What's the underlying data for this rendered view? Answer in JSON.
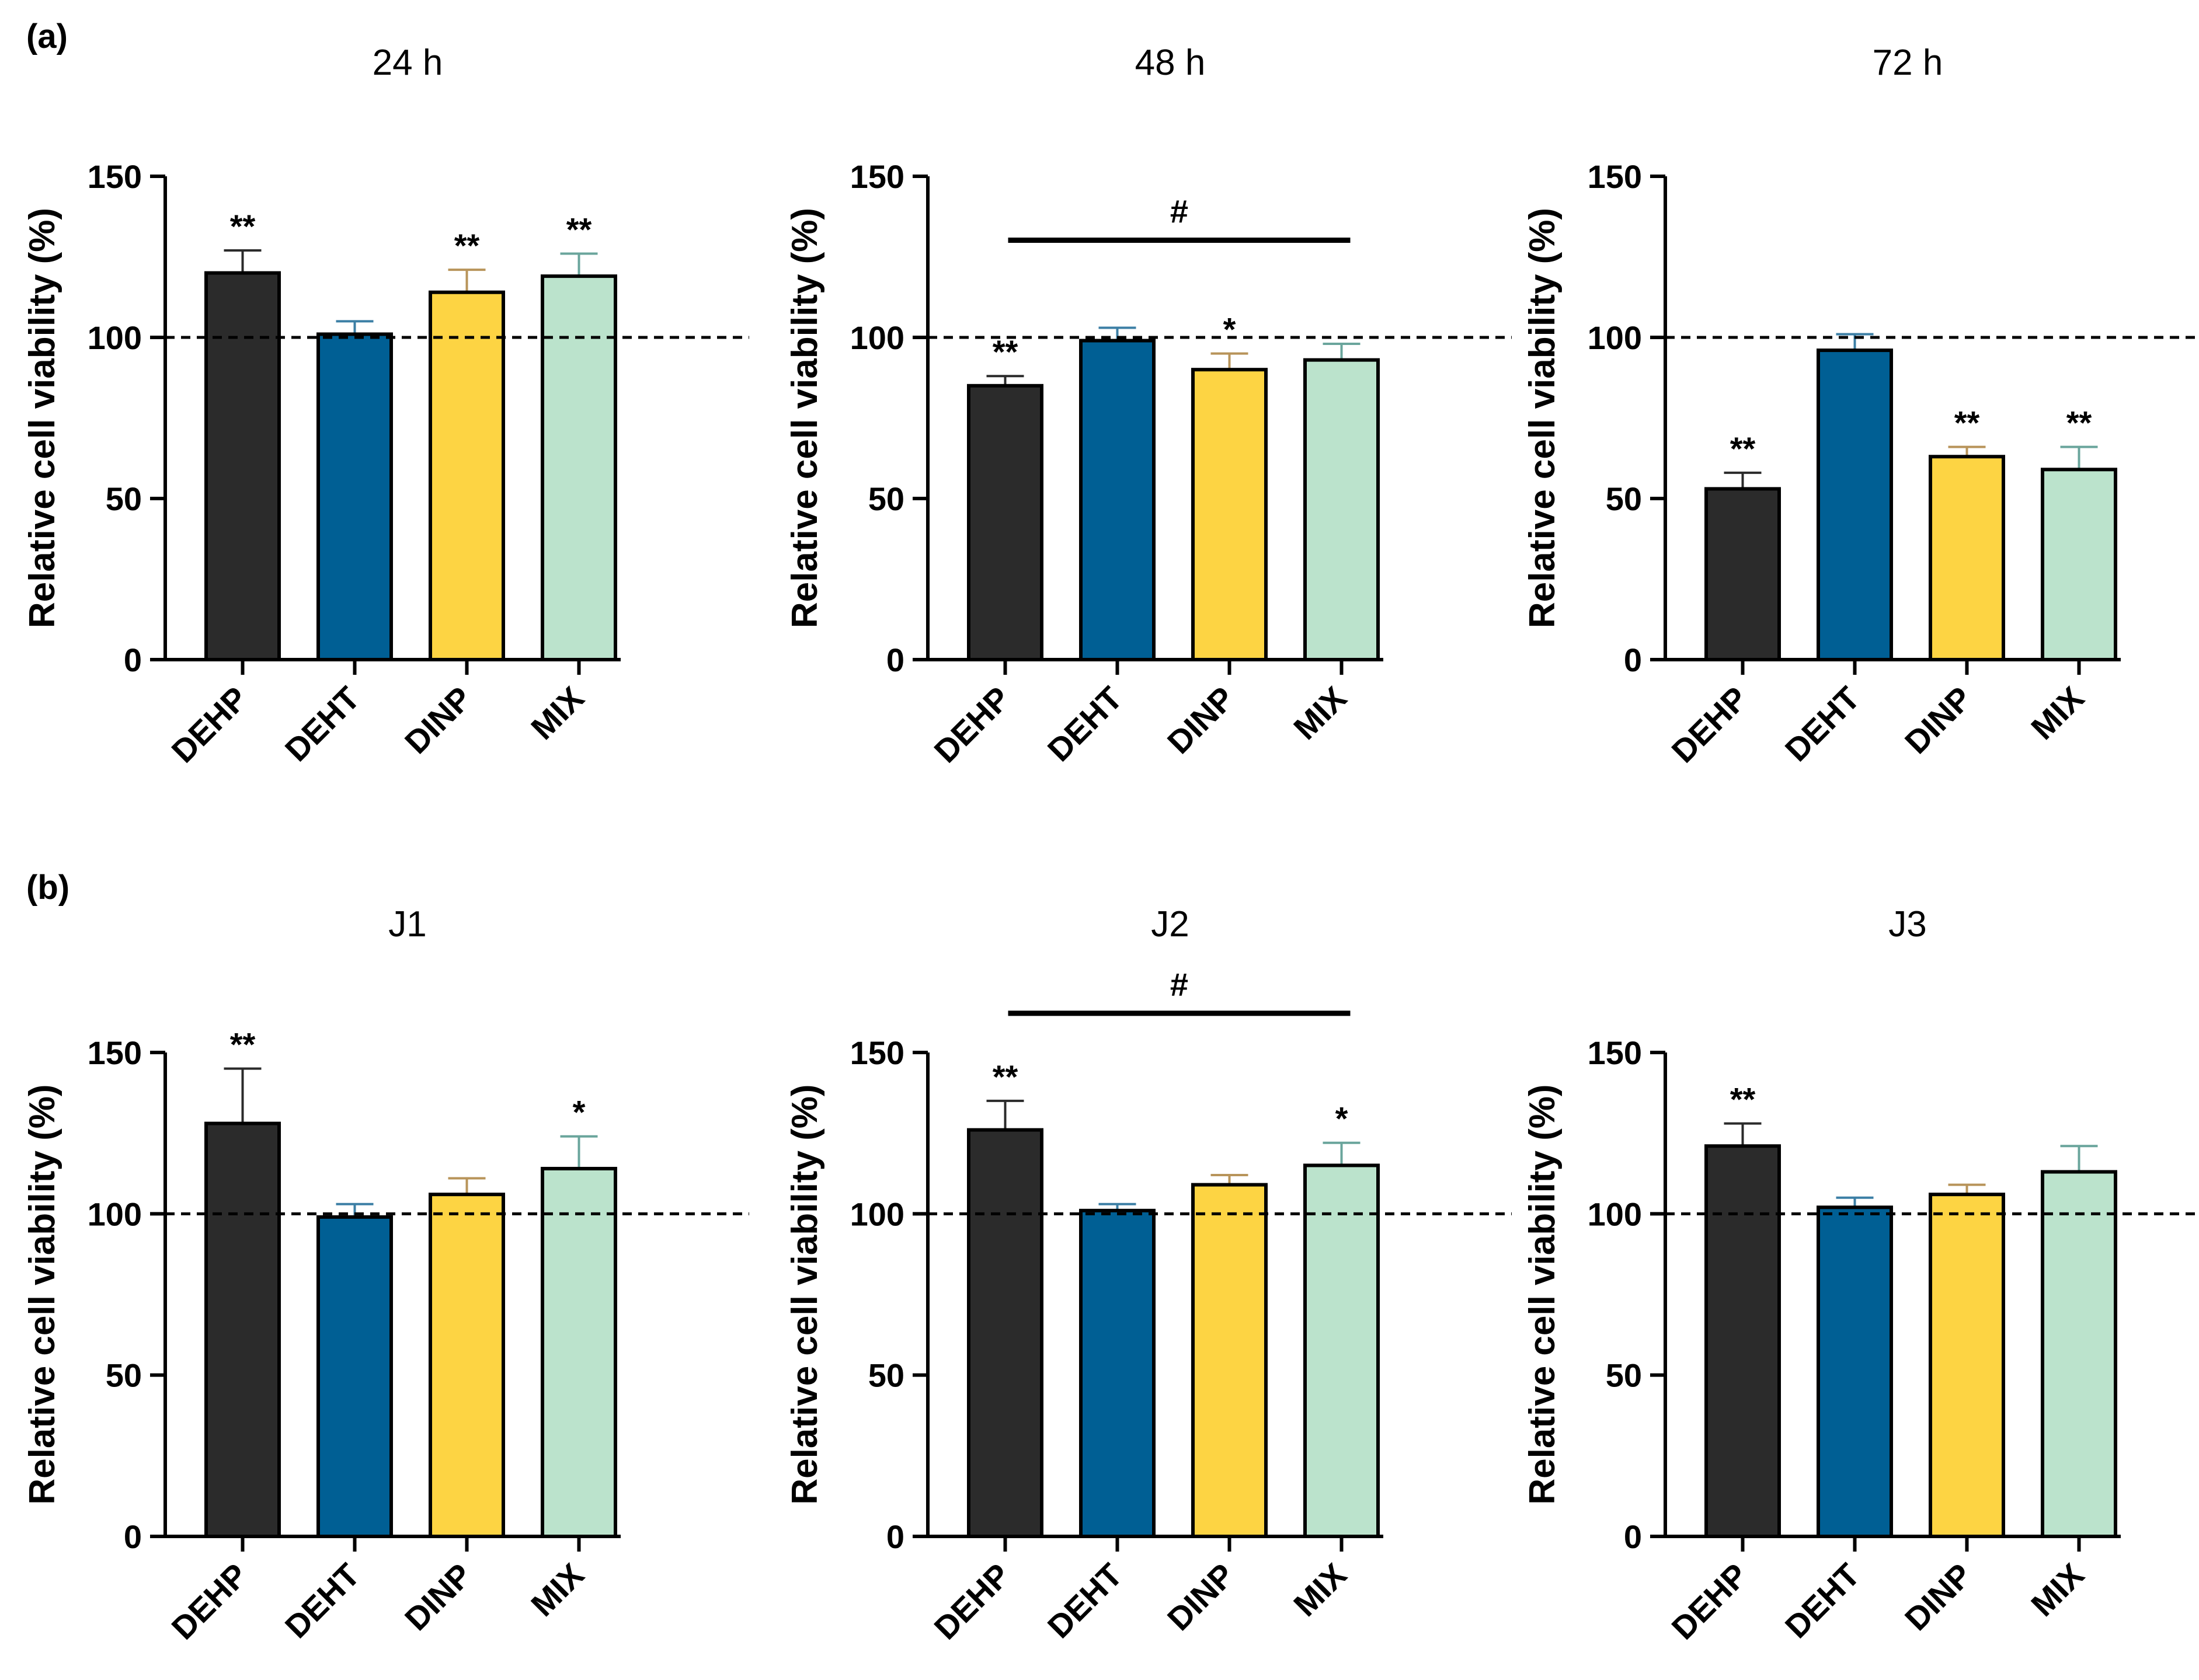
{
  "figure": {
    "panels": [
      {
        "label": "(a)"
      },
      {
        "label": "(b)"
      }
    ]
  },
  "chart_data": [
    {
      "type": "bar",
      "title": "24 h",
      "ylabel": "Relative cell viability (%)",
      "xlabel": "",
      "categories": [
        "DEHP",
        "DEHT",
        "DINP",
        "MIX"
      ],
      "values": [
        120,
        101,
        114,
        119
      ],
      "errors": [
        7,
        4,
        7,
        7
      ],
      "significance": [
        "**",
        "",
        "**",
        "**"
      ],
      "comparison": null,
      "reference_line": 100,
      "ylim": [
        0,
        150
      ],
      "yticks": [
        0,
        50,
        100,
        150
      ]
    },
    {
      "type": "bar",
      "title": "48 h",
      "ylabel": "Relative cell viability (%)",
      "xlabel": "",
      "categories": [
        "DEHP",
        "DEHT",
        "DINP",
        "MIX"
      ],
      "values": [
        85,
        99,
        90,
        93
      ],
      "errors": [
        3,
        4,
        5,
        5
      ],
      "significance": [
        "**",
        "",
        "*",
        ""
      ],
      "comparison": {
        "label": "#",
        "from": "DEHP",
        "to": "MIX"
      },
      "reference_line": 100,
      "ylim": [
        0,
        150
      ],
      "yticks": [
        0,
        50,
        100,
        150
      ]
    },
    {
      "type": "bar",
      "title": "72 h",
      "ylabel": "Relative cell viability (%)",
      "xlabel": "",
      "categories": [
        "DEHP",
        "DEHT",
        "DINP",
        "MIX"
      ],
      "values": [
        53,
        96,
        63,
        59
      ],
      "errors": [
        5,
        5,
        3,
        7
      ],
      "significance": [
        "**",
        "",
        "**",
        "**"
      ],
      "comparison": null,
      "reference_line": 100,
      "ylim": [
        0,
        150
      ],
      "yticks": [
        0,
        50,
        100,
        150
      ]
    },
    {
      "type": "bar",
      "title": "J1",
      "ylabel": "Relative cell viability (%)",
      "xlabel": "",
      "categories": [
        "DEHP",
        "DEHT",
        "DINP",
        "MIX"
      ],
      "values": [
        128,
        99,
        106,
        114
      ],
      "errors": [
        17,
        4,
        5,
        10
      ],
      "significance": [
        "**",
        "",
        "",
        "*"
      ],
      "comparison": null,
      "reference_line": 100,
      "ylim": [
        0,
        150
      ],
      "yticks": [
        0,
        50,
        100,
        150
      ]
    },
    {
      "type": "bar",
      "title": "J2",
      "ylabel": "Relative cell viability (%)",
      "xlabel": "",
      "categories": [
        "DEHP",
        "DEHT",
        "DINP",
        "MIX"
      ],
      "values": [
        126,
        101,
        109,
        115
      ],
      "errors": [
        9,
        2,
        3,
        7
      ],
      "significance": [
        "**",
        "",
        "",
        "*"
      ],
      "comparison": {
        "label": "#",
        "from": "DEHP",
        "to": "MIX"
      },
      "reference_line": 100,
      "ylim": [
        0,
        150
      ],
      "yticks": [
        0,
        50,
        100,
        150
      ]
    },
    {
      "type": "bar",
      "title": "J3",
      "ylabel": "Relative cell viability (%)",
      "xlabel": "",
      "categories": [
        "DEHP",
        "DEHT",
        "DINP",
        "MIX"
      ],
      "values": [
        121,
        102,
        106,
        113
      ],
      "errors": [
        7,
        3,
        3,
        8
      ],
      "significance": [
        "**",
        "",
        "",
        ""
      ],
      "comparison": null,
      "reference_line": 100,
      "ylim": [
        0,
        150
      ],
      "yticks": [
        0,
        50,
        100,
        150
      ]
    }
  ],
  "colors": {
    "bar_fill": [
      "#2b2b2b",
      "#005f94",
      "#fdd443",
      "#bbe3cc"
    ],
    "error_bar": [
      "#2b2b2b",
      "#3c7fa5",
      "#b8945a",
      "#6aa59c"
    ],
    "axis": "#000000"
  }
}
